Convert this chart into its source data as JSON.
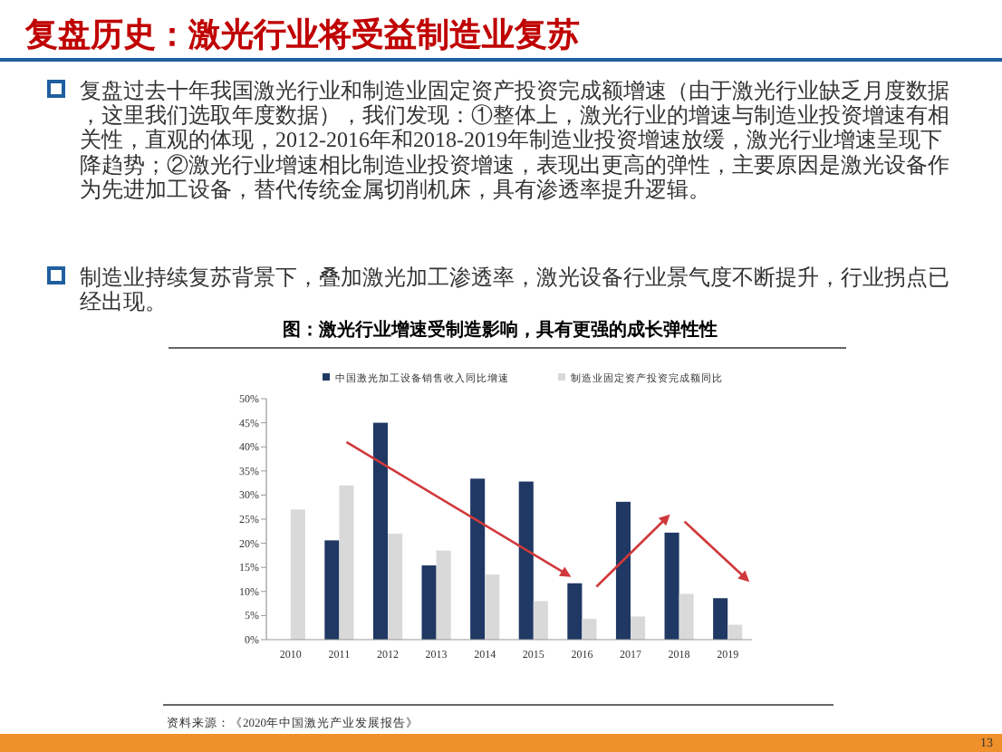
{
  "chart_data": {
    "type": "bar",
    "title": "复盘历史：激光行业将受益制造业复苏",
    "subtitle": "图：激光行业增速受制造影响，具有更强的成长弹性性",
    "annotations": [
      "复盘过去十年我国激光行业和制造业固定资产投资完成额增速（由于激光行业缺乏月度数据，这里我们选取年度数据），我们发现：①整体上，激光行业的增速与制造业投资增速有相关性，直观的体现，2012-2016年和2018-2019年制造业投资增速放缓，激光行业增速呈现下降趋势；②激光行业增速相比制造业投资增速，表现出更高的弹性，主要原因是激光设备作为先进加工设备，替代传统金属切削机床，具有渗透率提升逻辑。",
      "制造业持续复苏背景下，叠加激光加工渗透率，激光设备行业景气度不断提升，行业拐点已经出现。",
      "资料来源：《2020年中国激光产业发展报告》",
      "13"
    ],
    "categories": [
      "2010",
      "2011",
      "2012",
      "2013",
      "2014",
      "2015",
      "2016",
      "2017",
      "2018",
      "2019"
    ],
    "series": [
      {
        "name": "中国激光加工设备销售收入同比增速",
        "color": "#1f3864",
        "values": [
          null,
          20.6,
          45,
          15.4,
          33.4,
          32.8,
          11.7,
          28.6,
          22.2,
          8.6
        ]
      },
      {
        "name": "制造业固定资产投资完成额同比",
        "color": "#d9d9d9",
        "values": [
          27,
          32,
          22,
          18.5,
          13.5,
          8,
          4.3,
          4.8,
          9.5,
          3.1
        ]
      }
    ],
    "ylim": [
      0,
      50
    ],
    "yticks": [
      {
        "value": 0,
        "label": "0%"
      },
      {
        "value": 5,
        "label": "5%"
      },
      {
        "value": 10,
        "label": "10%"
      },
      {
        "value": 15,
        "label": "15%"
      },
      {
        "value": 20,
        "label": "20%"
      },
      {
        "value": 25,
        "label": "25%"
      },
      {
        "value": 30,
        "label": "30%"
      },
      {
        "value": 35,
        "label": "35%"
      },
      {
        "value": 40,
        "label": "40%"
      },
      {
        "value": 45,
        "label": "45%"
      },
      {
        "value": 50,
        "label": "50%"
      }
    ],
    "legend": "top",
    "grid": false
  }
}
